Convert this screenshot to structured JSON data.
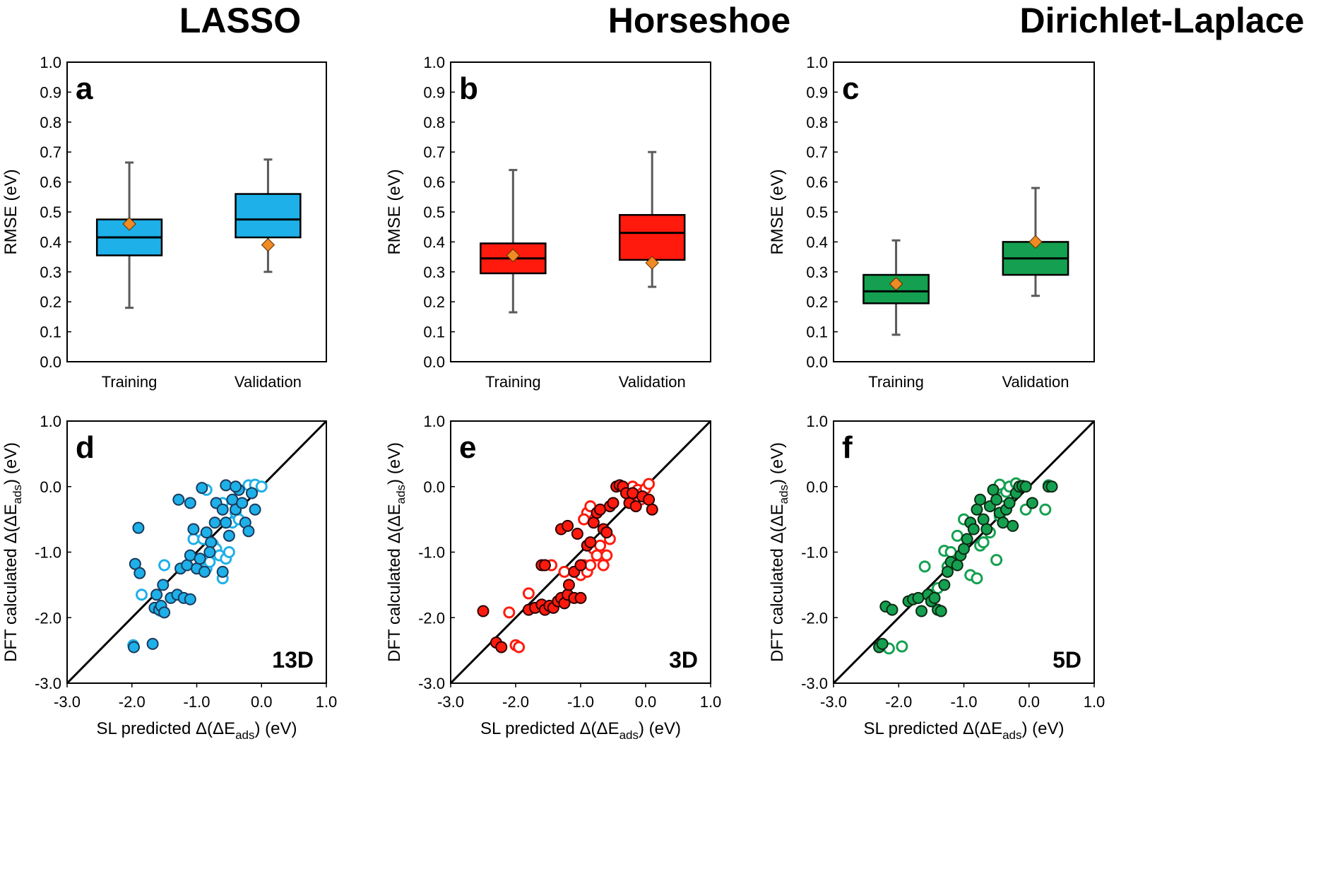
{
  "columns": [
    {
      "title": "LASSO",
      "color": "#1eb0e8",
      "edge": "#1a3a5c"
    },
    {
      "title": "Horseshoe",
      "color": "#ff1a0d",
      "edge": "#2a0000"
    },
    {
      "title": "Dirichlet-Laplace",
      "color": "#14a050",
      "edge": "#0c2a12"
    }
  ],
  "chart_data": [
    {
      "type": "box",
      "panel": "a",
      "ylabel": "RMSE (eV)",
      "ylim": [
        0.0,
        1.0
      ],
      "yticks": [
        "0.0",
        "0.1",
        "0.2",
        "0.3",
        "0.4",
        "0.5",
        "0.6",
        "0.7",
        "0.8",
        "0.9",
        "1.0"
      ],
      "categories": [
        "Training",
        "Validation"
      ],
      "boxes": [
        {
          "whisker_low": 0.18,
          "q1": 0.355,
          "median": 0.415,
          "q3": 0.475,
          "whisker_high": 0.665,
          "mean": 0.46
        },
        {
          "whisker_low": 0.3,
          "q1": 0.415,
          "median": 0.475,
          "q3": 0.56,
          "whisker_high": 0.675,
          "mean": 0.39
        }
      ]
    },
    {
      "type": "box",
      "panel": "b",
      "ylabel": "RMSE (eV)",
      "ylim": [
        0.0,
        1.0
      ],
      "yticks": [
        "0.0",
        "0.1",
        "0.2",
        "0.3",
        "0.4",
        "0.5",
        "0.6",
        "0.7",
        "0.8",
        "0.9",
        "1.0"
      ],
      "categories": [
        "Training",
        "Validation"
      ],
      "boxes": [
        {
          "whisker_low": 0.165,
          "q1": 0.295,
          "median": 0.345,
          "q3": 0.395,
          "whisker_high": 0.64,
          "mean": 0.355
        },
        {
          "whisker_low": 0.25,
          "q1": 0.34,
          "median": 0.43,
          "q3": 0.49,
          "whisker_high": 0.7,
          "mean": 0.33
        }
      ]
    },
    {
      "type": "box",
      "panel": "c",
      "ylabel": "RMSE (eV)",
      "ylim": [
        0.0,
        1.0
      ],
      "yticks": [
        "0.0",
        "0.1",
        "0.2",
        "0.3",
        "0.4",
        "0.5",
        "0.6",
        "0.7",
        "0.8",
        "0.9",
        "1.0"
      ],
      "categories": [
        "Training",
        "Validation"
      ],
      "boxes": [
        {
          "whisker_low": 0.09,
          "q1": 0.195,
          "median": 0.235,
          "q3": 0.29,
          "whisker_high": 0.405,
          "mean": 0.26
        },
        {
          "whisker_low": 0.22,
          "q1": 0.29,
          "median": 0.345,
          "q3": 0.4,
          "whisker_high": 0.58,
          "mean": 0.4
        }
      ]
    },
    {
      "type": "scatter",
      "panel": "d",
      "dims": "13D",
      "xlabel_prefix": "SL predicted Δ(ΔE",
      "xlabel_sub": "ads",
      "xlabel_suffix": ") (eV)",
      "ylabel_prefix": "DFT calculated Δ(ΔE",
      "ylabel_sub": "ads",
      "ylabel_suffix": ") (eV)",
      "xlim": [
        -3.0,
        1.0
      ],
      "ylim": [
        -3.0,
        1.0
      ],
      "xticks": [
        "-3.0",
        "-2.0",
        "-1.0",
        "0.0",
        "1.0"
      ],
      "yticks": [
        "-3.0",
        "-2.0",
        "-1.0",
        "0.0",
        "1.0"
      ],
      "filled": [
        [
          -1.9,
          -0.63
        ],
        [
          -1.95,
          -1.18
        ],
        [
          -1.88,
          -1.32
        ],
        [
          -1.68,
          -2.4
        ],
        [
          -1.97,
          -2.45
        ],
        [
          -1.65,
          -1.85
        ],
        [
          -1.58,
          -1.88
        ],
        [
          -1.55,
          -1.82
        ],
        [
          -1.5,
          -1.92
        ],
        [
          -1.52,
          -1.5
        ],
        [
          -1.62,
          -1.65
        ],
        [
          -1.4,
          -1.7
        ],
        [
          -1.3,
          -1.65
        ],
        [
          -1.2,
          -1.7
        ],
        [
          -1.1,
          -1.72
        ],
        [
          -1.25,
          -1.25
        ],
        [
          -1.15,
          -1.2
        ],
        [
          -1.1,
          -1.05
        ],
        [
          -1.0,
          -1.25
        ],
        [
          -0.95,
          -1.1
        ],
        [
          -1.05,
          -0.65
        ],
        [
          -1.28,
          -0.2
        ],
        [
          -1.1,
          -0.25
        ],
        [
          -0.92,
          -0.02
        ],
        [
          -0.85,
          -0.7
        ],
        [
          -0.78,
          -0.85
        ],
        [
          -0.72,
          -0.55
        ],
        [
          -0.7,
          -0.25
        ],
        [
          -0.6,
          -0.35
        ],
        [
          -0.55,
          -0.55
        ],
        [
          -0.5,
          -0.75
        ],
        [
          -0.45,
          -0.2
        ],
        [
          -0.4,
          -0.35
        ],
        [
          -0.35,
          -0.05
        ],
        [
          -0.3,
          -0.25
        ],
        [
          -0.25,
          -0.55
        ],
        [
          -0.2,
          -0.68
        ],
        [
          -0.15,
          -0.1
        ],
        [
          -0.1,
          -0.35
        ],
        [
          -0.55,
          0.02
        ],
        [
          -0.4,
          0.0
        ],
        [
          -0.8,
          -1.0
        ],
        [
          -0.6,
          -1.3
        ],
        [
          -0.88,
          -1.3
        ]
      ],
      "open": [
        [
          -1.85,
          -1.65
        ],
        [
          -1.5,
          -1.2
        ],
        [
          -1.55,
          -1.9
        ],
        [
          -1.98,
          -2.42
        ],
        [
          -1.05,
          -0.8
        ],
        [
          -0.9,
          -0.8
        ],
        [
          -0.85,
          -1.25
        ],
        [
          -0.8,
          -1.15
        ],
        [
          -0.75,
          -0.88
        ],
        [
          -0.7,
          -0.95
        ],
        [
          -0.65,
          -1.05
        ],
        [
          -0.6,
          -1.4
        ],
        [
          -0.55,
          -1.1
        ],
        [
          -0.5,
          -1.0
        ],
        [
          -0.45,
          -0.55
        ],
        [
          -0.4,
          -0.4
        ],
        [
          -0.35,
          -0.5
        ],
        [
          -0.6,
          -0.25
        ],
        [
          -0.2,
          0.02
        ],
        [
          -0.1,
          0.03
        ],
        [
          0.0,
          0.0
        ],
        [
          -0.85,
          -0.05
        ]
      ]
    },
    {
      "type": "scatter",
      "panel": "e",
      "dims": "3D",
      "xlabel_prefix": "SL predicted Δ(ΔE",
      "xlabel_sub": "ads",
      "xlabel_suffix": ") (eV)",
      "ylabel_prefix": "DFT calculated Δ(ΔE",
      "ylabel_sub": "ads",
      "ylabel_suffix": ") (eV)",
      "xlim": [
        -3.0,
        1.0
      ],
      "ylim": [
        -3.0,
        1.0
      ],
      "xticks": [
        "-3.0",
        "-2.0",
        "-1.0",
        "0.0",
        "1.0"
      ],
      "yticks": [
        "-3.0",
        "-2.0",
        "-1.0",
        "0.0",
        "1.0"
      ],
      "filled": [
        [
          -2.5,
          -1.9
        ],
        [
          -2.3,
          -2.38
        ],
        [
          -2.22,
          -2.45
        ],
        [
          -1.8,
          -1.88
        ],
        [
          -1.7,
          -1.85
        ],
        [
          -1.6,
          -1.8
        ],
        [
          -1.55,
          -1.88
        ],
        [
          -1.48,
          -1.82
        ],
        [
          -1.42,
          -1.85
        ],
        [
          -1.35,
          -1.75
        ],
        [
          -1.3,
          -1.7
        ],
        [
          -1.25,
          -1.78
        ],
        [
          -1.2,
          -1.65
        ],
        [
          -1.1,
          -1.7
        ],
        [
          -1.0,
          -1.7
        ],
        [
          -1.18,
          -1.5
        ],
        [
          -1.1,
          -1.3
        ],
        [
          -1.0,
          -1.2
        ],
        [
          -1.6,
          -1.2
        ],
        [
          -1.55,
          -1.2
        ],
        [
          -1.3,
          -0.65
        ],
        [
          -1.2,
          -0.6
        ],
        [
          -1.05,
          -0.72
        ],
        [
          -0.9,
          -0.9
        ],
        [
          -0.85,
          -0.85
        ],
        [
          -0.8,
          -0.55
        ],
        [
          -0.75,
          -0.4
        ],
        [
          -0.7,
          -0.35
        ],
        [
          -0.65,
          -0.65
        ],
        [
          -0.6,
          -0.7
        ],
        [
          -0.55,
          -0.3
        ],
        [
          -0.5,
          -0.25
        ],
        [
          -0.45,
          0.0
        ],
        [
          -0.4,
          0.02
        ],
        [
          -0.35,
          0.0
        ],
        [
          -0.3,
          -0.1
        ],
        [
          -0.25,
          -0.25
        ],
        [
          -0.2,
          -0.1
        ],
        [
          -0.15,
          -0.3
        ],
        [
          -0.05,
          -0.15
        ],
        [
          0.05,
          -0.2
        ],
        [
          0.1,
          -0.35
        ]
      ],
      "open": [
        [
          -2.1,
          -1.92
        ],
        [
          -2.0,
          -2.42
        ],
        [
          -1.95,
          -2.45
        ],
        [
          -1.8,
          -1.63
        ],
        [
          -1.45,
          -1.2
        ],
        [
          -1.25,
          -1.3
        ],
        [
          -1.0,
          -1.35
        ],
        [
          -0.95,
          -1.2
        ],
        [
          -0.9,
          -1.3
        ],
        [
          -0.85,
          -1.2
        ],
        [
          -0.8,
          -0.95
        ],
        [
          -0.75,
          -1.05
        ],
        [
          -0.7,
          -0.9
        ],
        [
          -0.65,
          -1.2
        ],
        [
          -0.6,
          -1.05
        ],
        [
          -0.55,
          -0.8
        ],
        [
          -0.9,
          -0.4
        ],
        [
          -0.85,
          -0.3
        ],
        [
          -0.95,
          -0.5
        ],
        [
          -0.2,
          0.0
        ],
        [
          -0.12,
          -0.05
        ],
        [
          -0.05,
          -0.1
        ],
        [
          0.0,
          -0.03
        ],
        [
          0.05,
          0.04
        ],
        [
          -0.08,
          -0.2
        ]
      ]
    },
    {
      "type": "scatter",
      "panel": "f",
      "dims": "5D",
      "xlabel_prefix": "SL predicted Δ(ΔE",
      "xlabel_sub": "ads",
      "xlabel_suffix": ") (eV)",
      "ylabel_prefix": "DFT calculated Δ(ΔE",
      "ylabel_sub": "ads",
      "ylabel_suffix": ") (eV)",
      "xlim": [
        -3.0,
        1.0
      ],
      "ylim": [
        -3.0,
        1.0
      ],
      "xticks": [
        "-3.0",
        "-2.0",
        "-1.0",
        "0.0",
        "1.0"
      ],
      "yticks": [
        "-3.0",
        "-2.0",
        "-1.0",
        "0.0",
        "1.0"
      ],
      "filled": [
        [
          -2.3,
          -2.45
        ],
        [
          -2.25,
          -2.4
        ],
        [
          -2.2,
          -1.83
        ],
        [
          -2.1,
          -1.88
        ],
        [
          -1.85,
          -1.75
        ],
        [
          -1.78,
          -1.72
        ],
        [
          -1.7,
          -1.7
        ],
        [
          -1.65,
          -1.9
        ],
        [
          -1.55,
          -1.65
        ],
        [
          -1.5,
          -1.75
        ],
        [
          -1.45,
          -1.7
        ],
        [
          -1.4,
          -1.88
        ],
        [
          -1.35,
          -1.9
        ],
        [
          -1.3,
          -1.5
        ],
        [
          -1.25,
          -1.3
        ],
        [
          -1.2,
          -1.15
        ],
        [
          -1.1,
          -1.2
        ],
        [
          -1.05,
          -1.05
        ],
        [
          -1.0,
          -0.95
        ],
        [
          -0.95,
          -0.8
        ],
        [
          -0.9,
          -0.55
        ],
        [
          -0.85,
          -0.65
        ],
        [
          -0.8,
          -0.35
        ],
        [
          -0.75,
          -0.2
        ],
        [
          -0.7,
          -0.5
        ],
        [
          -0.65,
          -0.65
        ],
        [
          -0.6,
          -0.3
        ],
        [
          -0.55,
          -0.05
        ],
        [
          -0.5,
          -0.2
        ],
        [
          -0.45,
          -0.4
        ],
        [
          -0.4,
          -0.55
        ],
        [
          -0.35,
          -0.35
        ],
        [
          -0.3,
          -0.25
        ],
        [
          -0.25,
          -0.6
        ],
        [
          -0.2,
          -0.1
        ],
        [
          -0.15,
          0.0
        ],
        [
          -0.1,
          0.01
        ],
        [
          -0.05,
          0.0
        ],
        [
          0.05,
          -0.25
        ],
        [
          0.3,
          0.0
        ],
        [
          0.35,
          0.0
        ]
      ],
      "open": [
        [
          -2.15,
          -2.47
        ],
        [
          -1.95,
          -2.44
        ],
        [
          -1.6,
          -1.22
        ],
        [
          -1.5,
          -1.65
        ],
        [
          -1.4,
          -1.55
        ],
        [
          -1.3,
          -0.98
        ],
        [
          -1.25,
          -1.22
        ],
        [
          -1.2,
          -1.0
        ],
        [
          -1.1,
          -0.75
        ],
        [
          -1.0,
          -0.5
        ],
        [
          -0.9,
          -1.35
        ],
        [
          -0.8,
          -1.4
        ],
        [
          -0.75,
          -0.9
        ],
        [
          -0.7,
          -0.85
        ],
        [
          -0.6,
          -0.7
        ],
        [
          -0.5,
          -1.12
        ],
        [
          -0.45,
          -0.45
        ],
        [
          -0.4,
          -0.15
        ],
        [
          -0.35,
          -0.08
        ],
        [
          -0.3,
          0.0
        ],
        [
          -0.2,
          0.05
        ],
        [
          -0.05,
          -0.35
        ],
        [
          0.25,
          -0.35
        ],
        [
          0.3,
          0.02
        ],
        [
          -0.45,
          0.03
        ]
      ]
    }
  ]
}
